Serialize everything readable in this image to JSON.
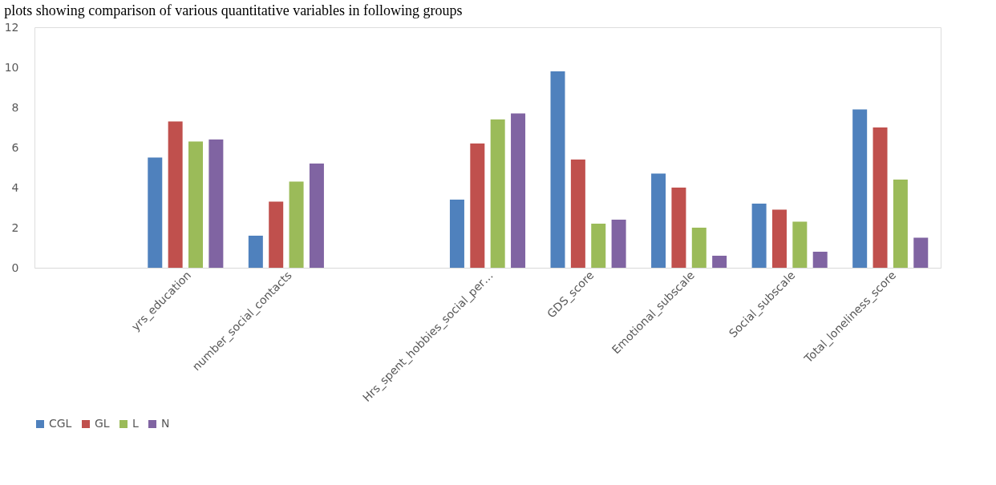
{
  "chart_data": {
    "type": "bar",
    "categories": [
      null,
      "yrs_education",
      "number_social_contacts",
      null,
      "Hrs_spent_hobbies_social_per…",
      "GDS_score",
      "Emotional_subscale",
      "Social_subscale",
      "Total_loneliness_score"
    ],
    "series": [
      {
        "name": "CGL",
        "color": "#4f81bd",
        "values": [
          null,
          5.5,
          1.6,
          null,
          3.4,
          9.8,
          4.7,
          3.2,
          7.9
        ]
      },
      {
        "name": "GL",
        "color": "#c0504d",
        "values": [
          null,
          7.3,
          3.3,
          null,
          6.2,
          5.4,
          4.0,
          2.9,
          7.0
        ]
      },
      {
        "name": "L",
        "color": "#9bbb59",
        "values": [
          null,
          6.3,
          4.3,
          null,
          7.4,
          2.2,
          2.0,
          2.3,
          4.4
        ]
      },
      {
        "name": "N",
        "color": "#8064a2",
        "values": [
          null,
          6.4,
          5.2,
          null,
          7.7,
          2.4,
          0.6,
          0.8,
          1.5
        ]
      }
    ],
    "ylim": [
      0,
      12
    ],
    "yticks": [
      0,
      2,
      4,
      6,
      8,
      10,
      12
    ],
    "grid": false,
    "legend": "bottom",
    "annotations": [
      "plots showing comparison of various quantitative variables in following groups"
    ]
  }
}
